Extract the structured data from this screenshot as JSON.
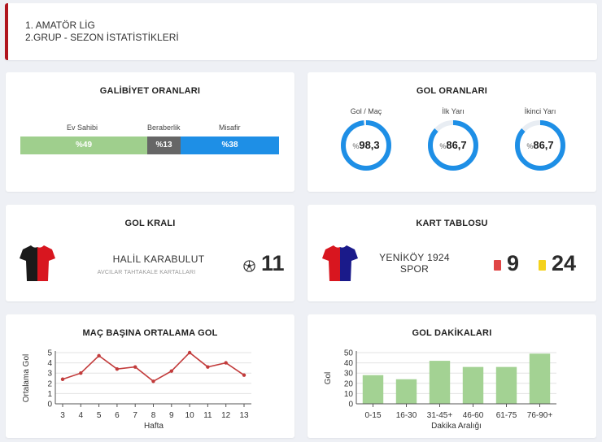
{
  "header": {
    "line1": "1. AMATÖR LİG",
    "line2": "2.GRUP - SEZON İSTATİSTİKLERİ",
    "accent": "#b0151e"
  },
  "win_rates": {
    "title": "GALİBİYET ORANLARI",
    "segments": [
      {
        "label": "Ev Sahibi",
        "value": "%49",
        "fraction": 0.49,
        "color": "#9fcf8d"
      },
      {
        "label": "Beraberlik",
        "value": "%13",
        "fraction": 0.13,
        "color": "#666666"
      },
      {
        "label": "Misafir",
        "value": "%38",
        "fraction": 0.38,
        "color": "#1e8fe6"
      }
    ]
  },
  "goal_rates": {
    "title": "GOL ORANLARI",
    "gauges": [
      {
        "label": "Gol / Maç",
        "pct_sign": "%",
        "value": "98,3",
        "fraction": 0.983
      },
      {
        "label": "İlk Yarı",
        "pct_sign": "%",
        "value": "86,7",
        "fraction": 0.867
      },
      {
        "label": "İkinci Yarı",
        "pct_sign": "%",
        "value": "86,7",
        "fraction": 0.867
      }
    ],
    "color": "#1e8fe6"
  },
  "top_scorer": {
    "title": "GOL KRALI",
    "name": "HALİL KARABULUT",
    "team": "AVCILAR TAHTAKALE KARTALLARI",
    "goals": "11",
    "icon": "soccer-ball-icon",
    "jersey_colors": [
      "#1a1a1a",
      "#d8161f"
    ]
  },
  "card_table": {
    "title": "KART TABLOSU",
    "team_line1": "YENİKÖY 1924",
    "team_line2": "SPOR",
    "red": "9",
    "yellow": "24",
    "red_color": "#e04545",
    "yellow_color": "#f4d21c",
    "jersey_colors": [
      "#d8161f",
      "#1a1a8a"
    ]
  },
  "chart_data": [
    {
      "type": "line",
      "title": "MAÇ BAŞINA ORTALAMA GOL",
      "xlabel": "Hafta",
      "ylabel": "Ortalama Gol",
      "x": [
        3,
        4,
        5,
        6,
        7,
        8,
        9,
        10,
        11,
        12,
        13
      ],
      "values": [
        2.4,
        3.0,
        4.7,
        3.4,
        3.6,
        2.2,
        3.2,
        5.0,
        3.6,
        4.0,
        2.8
      ],
      "ylim": [
        0,
        5
      ],
      "yticks": [
        0,
        1,
        2,
        3,
        4,
        5
      ],
      "color": "#c23b3b",
      "grid": true
    },
    {
      "type": "bar",
      "title": "GOL DAKİKALARI",
      "xlabel": "Dakika Aralığı",
      "ylabel": "Gol",
      "categories": [
        "0-15",
        "16-30",
        "31-45+",
        "46-60",
        "61-75",
        "76-90+"
      ],
      "values": [
        28,
        24,
        42,
        36,
        36,
        49
      ],
      "ylim": [
        0,
        50
      ],
      "yticks": [
        0,
        10,
        20,
        30,
        40,
        50
      ],
      "color": "#a3d293",
      "grid": true
    }
  ]
}
